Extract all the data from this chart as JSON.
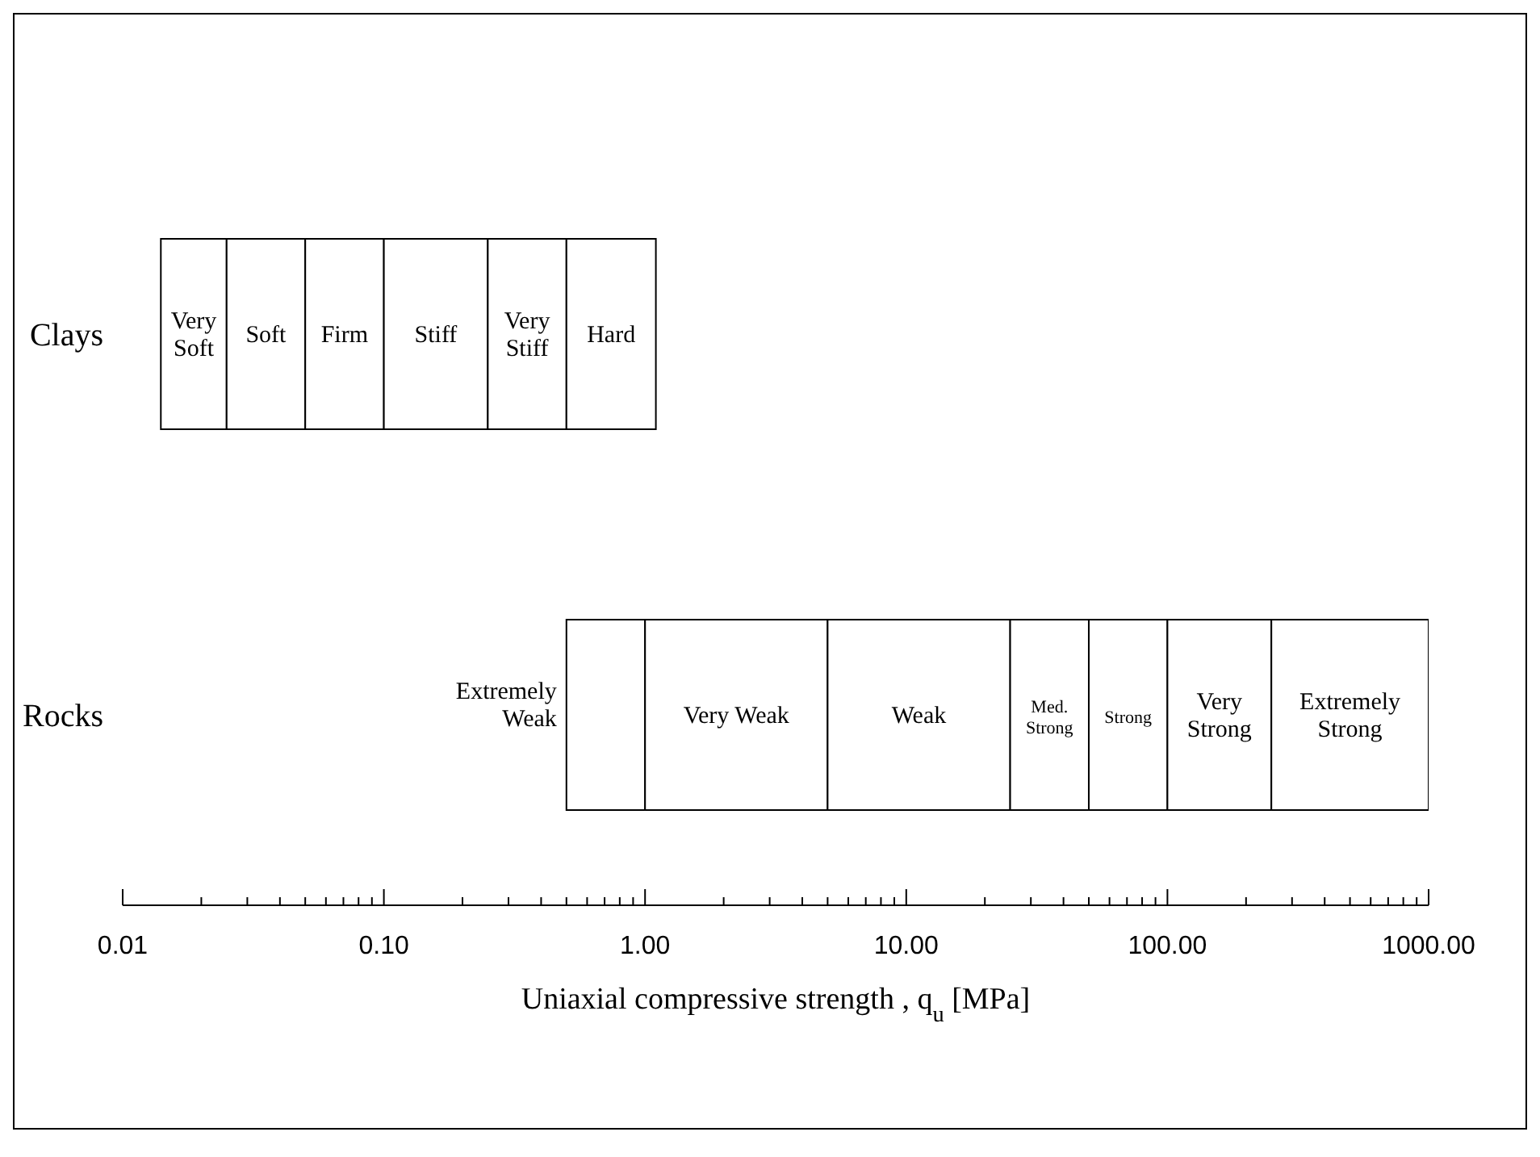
{
  "chart_data": {
    "type": "bar",
    "orientation": "horizontal",
    "xlabel": "Uniaxial compressive strength , q$_{u}$ [MPa]",
    "log": "x",
    "categories": [
      "Clays",
      "Rocks"
    ],
    "xlim": [
      0.01,
      1000
    ],
    "xticks": [
      {
        "value": 0.01,
        "label": "0.01"
      },
      {
        "value": 0.02,
        "label": null
      },
      {
        "value": 0.03,
        "label": null
      },
      {
        "value": 0.04,
        "label": null
      },
      {
        "value": 0.05,
        "label": null
      },
      {
        "value": 0.06,
        "label": null
      },
      {
        "value": 0.07,
        "label": null
      },
      {
        "value": 0.08,
        "label": null
      },
      {
        "value": 0.09,
        "label": null
      },
      {
        "value": 0.1,
        "label": "0.10"
      },
      {
        "value": 0.2,
        "label": null
      },
      {
        "value": 0.3,
        "label": null
      },
      {
        "value": 0.4,
        "label": null
      },
      {
        "value": 0.5,
        "label": null
      },
      {
        "value": 0.6,
        "label": null
      },
      {
        "value": 0.7,
        "label": null
      },
      {
        "value": 0.8,
        "label": null
      },
      {
        "value": 0.9,
        "label": null
      },
      {
        "value": 1,
        "label": "1.00"
      },
      {
        "value": 2,
        "label": null
      },
      {
        "value": 3,
        "label": null
      },
      {
        "value": 4,
        "label": null
      },
      {
        "value": 5,
        "label": null
      },
      {
        "value": 6,
        "label": null
      },
      {
        "value": 7,
        "label": null
      },
      {
        "value": 8,
        "label": null
      },
      {
        "value": 9,
        "label": null
      },
      {
        "value": 10,
        "label": "10.00"
      },
      {
        "value": 20,
        "label": null
      },
      {
        "value": 30,
        "label": null
      },
      {
        "value": 40,
        "label": null
      },
      {
        "value": 50,
        "label": null
      },
      {
        "value": 60,
        "label": null
      },
      {
        "value": 70,
        "label": null
      },
      {
        "value": 80,
        "label": null
      },
      {
        "value": 90,
        "label": null
      },
      {
        "value": 100,
        "label": "100.00"
      },
      {
        "value": 200,
        "label": null
      },
      {
        "value": 300,
        "label": null
      },
      {
        "value": 400,
        "label": null
      },
      {
        "value": 500,
        "label": null
      },
      {
        "value": 600,
        "label": null
      },
      {
        "value": 700,
        "label": null
      },
      {
        "value": 800,
        "label": null
      },
      {
        "value": 900,
        "label": null
      },
      {
        "value": 1000,
        "label": "1000.00"
      }
    ],
    "series": [
      {
        "name": "Very Soft",
        "color": "#ffffff",
        "base": [
          0.014,
          null
        ],
        "values": [
          0.011,
          null
        ]
      },
      {
        "name": "Soft",
        "color": "#ffffff",
        "base": [
          0.025,
          null
        ],
        "values": [
          0.025,
          null
        ]
      },
      {
        "name": "Firm",
        "color": "#ffffff",
        "base": [
          0.05,
          null
        ],
        "values": [
          0.05,
          null
        ]
      },
      {
        "name": "Stiff",
        "color": "#ffffff",
        "base": [
          0.1,
          null
        ],
        "values": [
          0.15,
          null
        ]
      },
      {
        "name": "Very Stiff",
        "color": "#ffffff",
        "base": [
          0.25,
          null
        ],
        "values": [
          0.25,
          null
        ]
      },
      {
        "name": "Hard",
        "color": "#ffffff",
        "base": [
          0.5,
          null
        ],
        "values": [
          0.6,
          null
        ]
      },
      {
        "name": "Extremely Weak",
        "color": "#ffffff",
        "base": [
          null,
          0.5
        ],
        "values": [
          null,
          0.5
        ]
      },
      {
        "name": "Very Weak",
        "color": "#ffffff",
        "base": [
          null,
          1
        ],
        "values": [
          null,
          4
        ]
      },
      {
        "name": "Weak",
        "color": "#ffffff",
        "base": [
          null,
          5
        ],
        "values": [
          null,
          20
        ]
      },
      {
        "name": "Med. Strong",
        "color": "#ffffff",
        "base": [
          null,
          25
        ],
        "values": [
          null,
          25
        ]
      },
      {
        "name": "Strong",
        "color": "#ffffff",
        "base": [
          null,
          50
        ],
        "values": [
          null,
          50
        ]
      },
      {
        "name": "Very Strong",
        "color": "#ffffff",
        "base": [
          null,
          100
        ],
        "values": [
          null,
          150
        ]
      },
      {
        "name": "Extremely Strong",
        "color": "#ffffff",
        "base": [
          null,
          250
        ],
        "values": [
          null,
          750
        ]
      }
    ]
  }
}
